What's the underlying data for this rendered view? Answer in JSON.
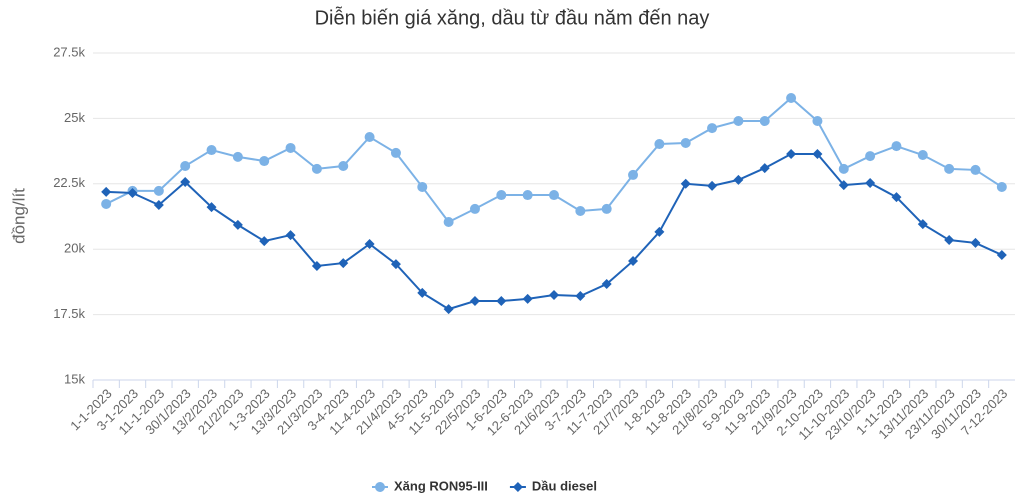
{
  "chart_data": {
    "type": "line",
    "title": "Diễn biến giá xăng, dầu từ đầu năm đến nay",
    "y_label": "đồng/lít",
    "categories": [
      "1-1-2023",
      "3-1-2023",
      "11-1-2023",
      "30/1/2023",
      "13/2/2023",
      "21/2/2023",
      "1-3-2023",
      "13/3/2023",
      "21/3/2023",
      "3-4-2023",
      "11-4-2023",
      "21/4/2023",
      "4-5-2023",
      "11-5-2023",
      "22/5/2023",
      "1-6-2023",
      "12-6-2023",
      "21/6/2023",
      "3-7-2023",
      "11-7-2023",
      "21/7/2023",
      "1-8-2023",
      "11-8-2023",
      "21/8/2023",
      "5-9-2023",
      "11-9-2023",
      "21/9/2023",
      "2-10-2023",
      "11-10-2023",
      "23/10/2023",
      "1-11-2023",
      "13/11/2023",
      "23/11/2023",
      "30/11/2023",
      "7-12-2023"
    ],
    "series": [
      {
        "name": "Xăng RON95-III",
        "color": "#7cb2e6",
        "marker": "circle",
        "values": [
          21730,
          22230,
          22230,
          23180,
          23790,
          23530,
          23370,
          23870,
          23070,
          23180,
          24290,
          23680,
          22380,
          21040,
          21540,
          22070,
          22070,
          22070,
          21460,
          21540,
          22840,
          24020,
          24060,
          24630,
          24900,
          24900,
          25780,
          24900,
          23070,
          23560,
          23940,
          23600,
          23070,
          23030,
          22380
        ]
      },
      {
        "name": "Dầu diesel",
        "color": "#1f63b8",
        "marker": "diamond",
        "values": [
          22190,
          22150,
          21690,
          22570,
          21610,
          20930,
          20310,
          20540,
          19360,
          19470,
          20200,
          19430,
          18330,
          17710,
          18020,
          18020,
          18100,
          18250,
          18210,
          18670,
          19550,
          20660,
          22500,
          22420,
          22650,
          23100,
          23640,
          23640,
          22450,
          22530,
          21990,
          20960,
          20350,
          20240,
          19780
        ]
      }
    ],
    "ylim": [
      15000,
      27500
    ],
    "yticks": [
      {
        "value": 15000,
        "label": "15k"
      },
      {
        "value": 17500,
        "label": "17.5k"
      },
      {
        "value": 20000,
        "label": "20k"
      },
      {
        "value": 22500,
        "label": "22.5k"
      },
      {
        "value": 25000,
        "label": "25k"
      },
      {
        "value": 27500,
        "label": "27.5k"
      }
    ],
    "grid": true,
    "legend": "bottom"
  }
}
